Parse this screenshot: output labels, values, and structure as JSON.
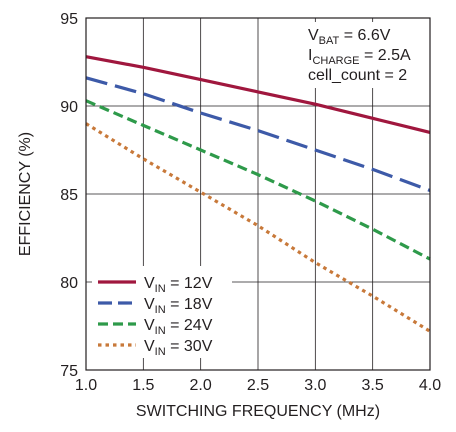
{
  "chart_data": {
    "type": "line",
    "xlabel": "SWITCHING FREQUENCY (MHz)",
    "ylabel": "EFFICIENCY (%)",
    "xlim": [
      1.0,
      4.0
    ],
    "ylim": [
      75,
      95
    ],
    "x_ticks": [
      "1.0",
      "1.5",
      "2.0",
      "2.5",
      "3.0",
      "3.5",
      "4.0"
    ],
    "y_ticks": [
      "75",
      "80",
      "85",
      "90",
      "95"
    ],
    "grid": true,
    "annotations": [
      {
        "main": "V",
        "sub": "BAT",
        "rest": " = 6.6V"
      },
      {
        "main": "I",
        "sub": "CHARGE",
        "rest": " = 2.5A"
      },
      {
        "main": "cell_count = 2",
        "sub": "",
        "rest": ""
      }
    ],
    "legend_position": "bottom-left",
    "series": [
      {
        "name_main": "V",
        "name_sub": "IN",
        "name_rest": " = 12V",
        "color": "#a0173e",
        "dash": "solid",
        "x": [
          1.0,
          1.5,
          2.0,
          2.5,
          3.0,
          3.5,
          4.0
        ],
        "y": [
          92.8,
          92.2,
          91.5,
          90.8,
          90.1,
          89.3,
          88.5
        ]
      },
      {
        "name_main": "V",
        "name_sub": "IN",
        "name_rest": " = 18V",
        "color": "#3d5aa8",
        "dash": "long-dash",
        "x": [
          1.0,
          1.5,
          2.0,
          2.5,
          3.0,
          3.5,
          4.0
        ],
        "y": [
          91.6,
          90.7,
          89.6,
          88.6,
          87.5,
          86.4,
          85.2
        ]
      },
      {
        "name_main": "V",
        "name_sub": "IN",
        "name_rest": " = 24V",
        "color": "#2e9a4a",
        "dash": "dash",
        "x": [
          1.0,
          1.5,
          2.0,
          2.5,
          3.0,
          3.5,
          4.0
        ],
        "y": [
          90.3,
          88.9,
          87.5,
          86.1,
          84.6,
          83.0,
          81.3
        ]
      },
      {
        "name_main": "V",
        "name_sub": "IN",
        "name_rest": " = 30V",
        "color": "#c8793a",
        "dash": "dot",
        "x": [
          1.0,
          1.5,
          2.0,
          2.5,
          3.0,
          3.5,
          4.0
        ],
        "y": [
          89.0,
          87.0,
          85.1,
          83.2,
          81.1,
          79.2,
          77.2
        ]
      }
    ]
  }
}
